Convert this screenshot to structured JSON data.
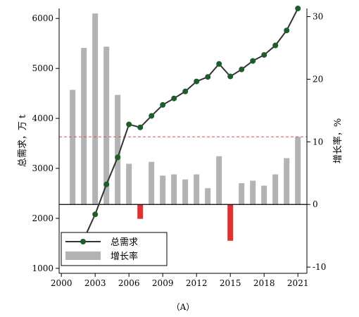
{
  "chart_data": {
    "type": "bar+line",
    "panel_label": "（A）",
    "x": [
      2001,
      2002,
      2003,
      2004,
      2005,
      2006,
      2007,
      2008,
      2009,
      2010,
      2011,
      2012,
      2013,
      2014,
      2015,
      2016,
      2017,
      2018,
      2019,
      2020,
      2021
    ],
    "x_ticks": [
      2000,
      2003,
      2006,
      2009,
      2012,
      2015,
      2018,
      2021
    ],
    "xlim": [
      1999.8,
      2021.8
    ],
    "y_left": {
      "label": "总需求，万 t",
      "lim": [
        900,
        6200
      ],
      "ticks": [
        1000,
        2000,
        3000,
        4000,
        5000,
        6000
      ]
    },
    "y_right": {
      "label": "增长率，%",
      "lim": [
        -11,
        31.3
      ],
      "ticks": [
        -10,
        0,
        10,
        20,
        30
      ]
    },
    "series": [
      {
        "name": "总需求",
        "kind": "line",
        "axis": "left",
        "color": "#1e5c2a",
        "line_color": "#333333",
        "values": [
          1330,
          1590,
          2080,
          2680,
          3220,
          3880,
          3820,
          4050,
          4270,
          4400,
          4540,
          4740,
          4830,
          5090,
          4840,
          4980,
          5150,
          5270,
          5460,
          5760,
          6200
        ]
      },
      {
        "name": "增长率",
        "kind": "bar",
        "axis": "right",
        "color": "#b3b3b3",
        "negative_color": "#e03030",
        "values": [
          18.3,
          25.0,
          30.5,
          25.2,
          17.5,
          6.5,
          -2.3,
          6.8,
          4.6,
          4.8,
          4.0,
          4.8,
          2.6,
          7.7,
          -5.8,
          3.4,
          3.8,
          3.0,
          4.8,
          7.4,
          10.8
        ]
      }
    ],
    "reference_line": {
      "axis": "right",
      "value": 10.8,
      "color": "#e05050",
      "style": "dashed"
    },
    "legend": {
      "position": "bottom-left"
    }
  }
}
